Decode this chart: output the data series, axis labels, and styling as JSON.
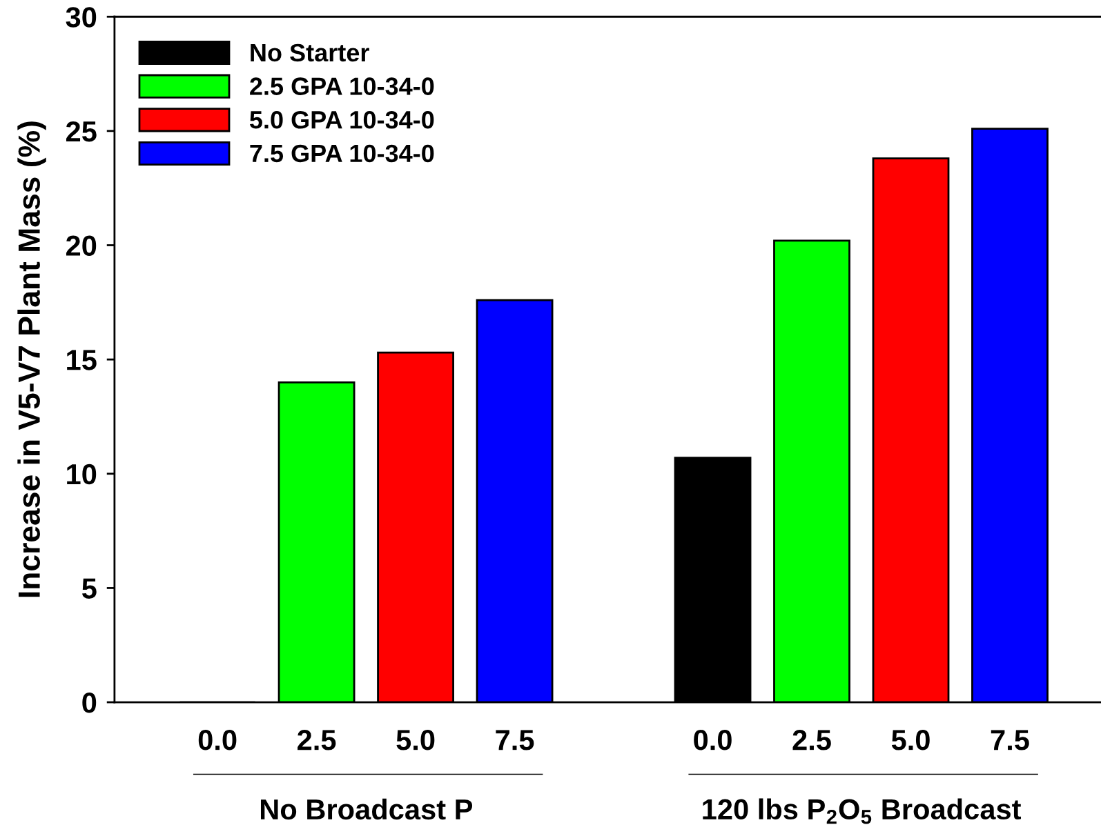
{
  "chart_data": {
    "type": "bar",
    "ylabel": "Increase in V5-V7 Plant Mass (%)",
    "categories": [
      "0.0",
      "2.5",
      "5.0",
      "7.5",
      null,
      "0.0",
      "2.5",
      "5.0",
      "7.5"
    ],
    "series": [
      {
        "name": "No Starter",
        "color": "#000000",
        "values": [
          0,
          null,
          null,
          null,
          null,
          10.7,
          null,
          null,
          null
        ]
      },
      {
        "name": "2.5 GPA 10-34-0",
        "color": "#00ff00",
        "values": [
          null,
          14.0,
          null,
          null,
          null,
          null,
          20.2,
          null,
          null
        ]
      },
      {
        "name": "5.0 GPA 10-34-0",
        "color": "#ff0000",
        "values": [
          null,
          null,
          15.3,
          null,
          null,
          null,
          null,
          23.8,
          null
        ]
      },
      {
        "name": "7.5 GPA 10-34-0",
        "color": "#0000ff",
        "values": [
          null,
          null,
          null,
          17.6,
          null,
          null,
          null,
          null,
          25.1
        ]
      }
    ],
    "ylim": [
      0,
      30
    ],
    "yticks": [
      0,
      5,
      10,
      15,
      20,
      25,
      30
    ],
    "grid": false,
    "legend": "top left",
    "annotations": [
      "No Broadcast P",
      "120 lbs P$_{2}$O$_{5}$ Broadcast"
    ]
  }
}
